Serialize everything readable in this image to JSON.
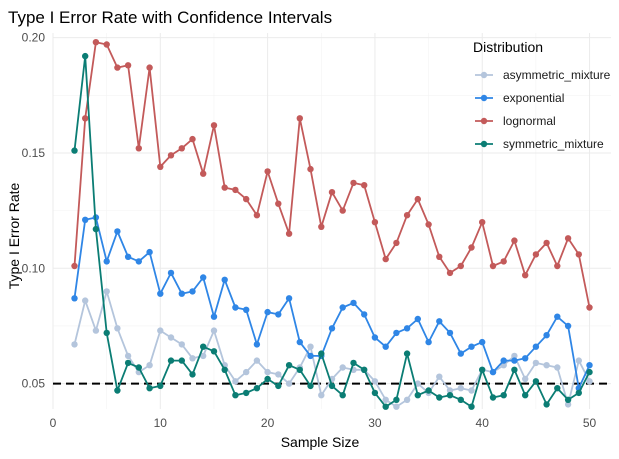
{
  "chart_data": {
    "type": "line",
    "title": "Type I Error Rate with Confidence Intervals",
    "xlabel": "Sample Size",
    "ylabel": "Type I Error Rate",
    "xlim": [
      0,
      52
    ],
    "ylim": [
      0.039,
      0.202
    ],
    "x_ticks": [
      0,
      10,
      20,
      30,
      40,
      50
    ],
    "y_ticks": [
      0.05,
      0.1,
      0.15,
      0.2
    ],
    "x_tick_labels": [
      "0",
      "10",
      "20",
      "30",
      "40",
      "50"
    ],
    "y_tick_labels": [
      "0.05",
      "0.10",
      "0.15",
      "0.20"
    ],
    "grid": true,
    "legend": {
      "title": "Distribution",
      "position": "top-right"
    },
    "reference_line": {
      "y": 0.05,
      "style": "dashed",
      "color": "#000000"
    },
    "x": [
      2,
      3,
      4,
      5,
      6,
      7,
      8,
      9,
      10,
      11,
      12,
      13,
      14,
      15,
      16,
      17,
      18,
      19,
      20,
      21,
      22,
      23,
      24,
      25,
      26,
      27,
      28,
      29,
      30,
      31,
      32,
      33,
      34,
      35,
      36,
      37,
      38,
      39,
      40,
      41,
      42,
      43,
      44,
      45,
      46,
      47,
      48,
      49,
      50
    ],
    "series": [
      {
        "name": "asymmetric_mixture",
        "color": "#b4c5dc",
        "values": [
          0.067,
          0.086,
          0.073,
          0.09,
          0.074,
          0.062,
          0.055,
          0.058,
          0.073,
          0.07,
          0.067,
          0.061,
          0.062,
          0.073,
          0.058,
          0.051,
          0.055,
          0.06,
          0.055,
          0.054,
          0.05,
          0.057,
          0.066,
          0.045,
          0.052,
          0.057,
          0.056,
          0.056,
          0.051,
          0.043,
          0.04,
          0.043,
          0.05,
          0.046,
          0.053,
          0.047,
          0.048,
          0.047,
          0.056,
          0.055,
          0.058,
          0.062,
          0.052,
          0.059,
          0.058,
          0.057,
          0.041,
          0.06,
          0.051
        ]
      },
      {
        "name": "exponential",
        "color": "#2f86e6",
        "values": [
          0.087,
          0.121,
          0.122,
          0.103,
          0.116,
          0.105,
          0.103,
          0.107,
          0.089,
          0.098,
          0.089,
          0.09,
          0.096,
          0.079,
          0.095,
          0.083,
          0.082,
          0.067,
          0.081,
          0.08,
          0.087,
          0.068,
          0.062,
          0.062,
          0.074,
          0.083,
          0.085,
          0.08,
          0.07,
          0.066,
          0.072,
          0.074,
          0.078,
          0.068,
          0.077,
          0.072,
          0.063,
          0.066,
          0.068,
          0.055,
          0.06,
          0.06,
          0.061,
          0.066,
          0.071,
          0.079,
          0.075,
          0.048,
          0.058
        ]
      },
      {
        "name": "lognormal",
        "color": "#c35a5a",
        "values": [
          0.101,
          0.165,
          0.198,
          0.197,
          0.187,
          0.188,
          0.152,
          0.187,
          0.144,
          0.149,
          0.152,
          0.156,
          0.141,
          0.162,
          0.135,
          0.134,
          0.13,
          0.123,
          0.142,
          0.128,
          0.115,
          0.165,
          0.143,
          0.118,
          0.133,
          0.125,
          0.137,
          0.136,
          0.12,
          0.104,
          0.111,
          0.123,
          0.13,
          0.119,
          0.105,
          0.098,
          0.101,
          0.109,
          0.12,
          0.101,
          0.103,
          0.112,
          0.097,
          0.106,
          0.111,
          0.101,
          0.113,
          0.106,
          0.083
        ]
      },
      {
        "name": "symmetric_mixture",
        "color": "#0b7d74",
        "values": [
          0.151,
          0.192,
          0.117,
          0.072,
          0.047,
          0.059,
          0.057,
          0.048,
          0.049,
          0.06,
          0.06,
          0.054,
          0.066,
          0.064,
          0.056,
          0.045,
          0.046,
          0.048,
          0.052,
          0.049,
          0.058,
          0.056,
          0.049,
          0.063,
          0.049,
          0.045,
          0.059,
          0.056,
          0.046,
          0.04,
          0.043,
          0.063,
          0.045,
          0.047,
          0.044,
          0.045,
          0.043,
          0.04,
          0.056,
          0.044,
          0.045,
          0.056,
          0.045,
          0.051,
          0.041,
          0.048,
          0.043,
          0.046,
          0.055
        ]
      }
    ]
  }
}
